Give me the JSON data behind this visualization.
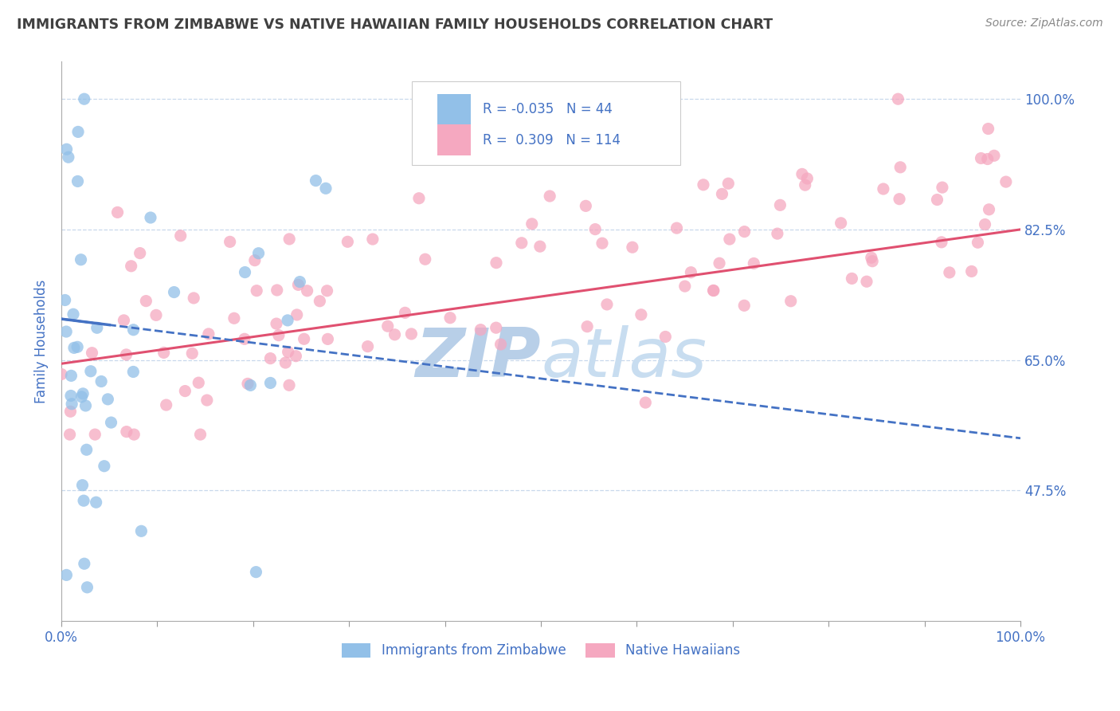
{
  "title": "IMMIGRANTS FROM ZIMBABWE VS NATIVE HAWAIIAN FAMILY HOUSEHOLDS CORRELATION CHART",
  "source_text": "Source: ZipAtlas.com",
  "ylabel": "Family Households",
  "legend_labels": [
    "Immigrants from Zimbabwe",
    "Native Hawaiians"
  ],
  "R_blue": -0.035,
  "N_blue": 44,
  "R_pink": 0.309,
  "N_pink": 114,
  "blue_color": "#92c0e8",
  "pink_color": "#f5a8c0",
  "blue_line_color": "#4472c4",
  "pink_line_color": "#e05070",
  "title_color": "#404040",
  "axis_label_color": "#4472c4",
  "legend_text_color": "#4472c4",
  "watermark_zip_color": "#b8cfe8",
  "watermark_atlas_color": "#c8ddf0",
  "xlim": [
    0.0,
    100.0
  ],
  "ylim": [
    30.0,
    105.0
  ],
  "yticks": [
    47.5,
    65.0,
    82.5,
    100.0
  ],
  "xticks": [
    0.0,
    10.0,
    20.0,
    30.0,
    40.0,
    50.0,
    60.0,
    70.0,
    80.0,
    90.0,
    100.0
  ],
  "background_color": "#ffffff",
  "grid_color": "#c8d8ec",
  "plot_bg_color": "#ffffff",
  "blue_trend_x0": 0,
  "blue_trend_y0": 70.5,
  "blue_trend_x1": 100,
  "blue_trend_y1": 54.5,
  "pink_trend_x0": 0,
  "pink_trend_y0": 64.5,
  "pink_trend_x1": 100,
  "pink_trend_y1": 82.5
}
